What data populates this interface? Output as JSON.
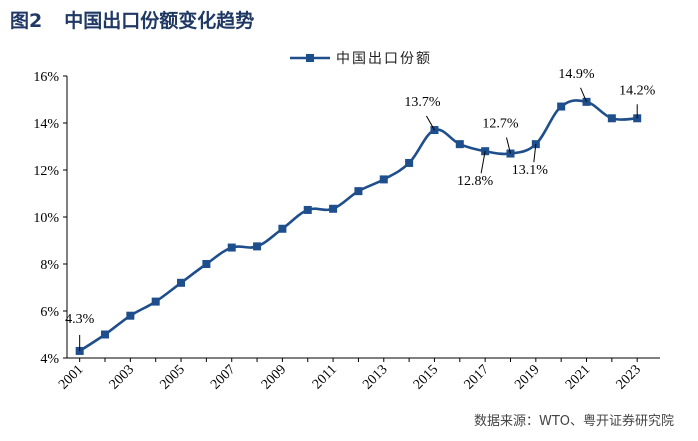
{
  "figure": {
    "number": "图2",
    "title": "中国出口份额变化趋势",
    "source": "数据来源：WTO、粤开证券研究院"
  },
  "colors": {
    "series": "#1f4e8c",
    "title": "#1f3864"
  },
  "chart_data": {
    "type": "line",
    "title": "中国出口份额变化趋势",
    "xlabel": "",
    "ylabel": "",
    "ylim": [
      4,
      16
    ],
    "y_ticks": [
      "4%",
      "6%",
      "8%",
      "10%",
      "12%",
      "14%",
      "16%"
    ],
    "x_ticks": [
      "2001",
      "2003",
      "2005",
      "2007",
      "2009",
      "2011",
      "2013",
      "2015",
      "2017",
      "2019",
      "2021",
      "2023"
    ],
    "legend": "top-center",
    "grid": false,
    "series": [
      {
        "name": "中国出口份额",
        "x": [
          2001,
          2002,
          2003,
          2004,
          2005,
          2006,
          2007,
          2008,
          2009,
          2010,
          2011,
          2012,
          2013,
          2014,
          2015,
          2016,
          2017,
          2018,
          2019,
          2020,
          2021,
          2022,
          2023
        ],
        "values": [
          4.3,
          5.0,
          5.8,
          6.4,
          7.2,
          8.0,
          8.7,
          8.75,
          9.5,
          10.3,
          10.35,
          11.1,
          11.6,
          12.3,
          13.7,
          13.1,
          12.8,
          12.7,
          13.1,
          14.7,
          14.9,
          14.2,
          14.2
        ]
      }
    ],
    "annotations": [
      {
        "x": 2001,
        "text": "4.3%"
      },
      {
        "x": 2015,
        "text": "13.7%"
      },
      {
        "x": 2017,
        "text": "12.8%"
      },
      {
        "x": 2018,
        "text": "12.7%"
      },
      {
        "x": 2019,
        "text": "13.1%"
      },
      {
        "x": 2021,
        "text": "14.9%"
      },
      {
        "x": 2023,
        "text": "14.2%"
      }
    ]
  }
}
